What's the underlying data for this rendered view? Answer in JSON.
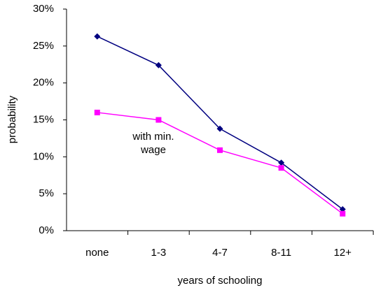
{
  "chart_data": {
    "type": "line",
    "x_label": "years of schooling",
    "y_label": "probability",
    "annotation": "with min. wage",
    "categories": [
      "none",
      "1-3",
      "4-7",
      "8-11",
      "12+"
    ],
    "series": [
      {
        "color": "#000080",
        "marker": "diamond",
        "values": [
          26.3,
          22.4,
          13.8,
          9.2,
          2.9
        ]
      },
      {
        "color": "#ff00ff",
        "marker": "square",
        "values": [
          16,
          15,
          10.9,
          8.5,
          2.3
        ]
      }
    ],
    "ylim": [
      0,
      30
    ],
    "yticks": [
      {
        "value": 0,
        "label": "0%"
      },
      {
        "value": 5,
        "label": "5%"
      },
      {
        "value": 10,
        "label": "10%"
      },
      {
        "value": 15,
        "label": "15%"
      },
      {
        "value": 20,
        "label": "20%"
      },
      {
        "value": 25,
        "label": "25%"
      },
      {
        "value": 30,
        "label": "30%"
      }
    ],
    "grid": false
  }
}
